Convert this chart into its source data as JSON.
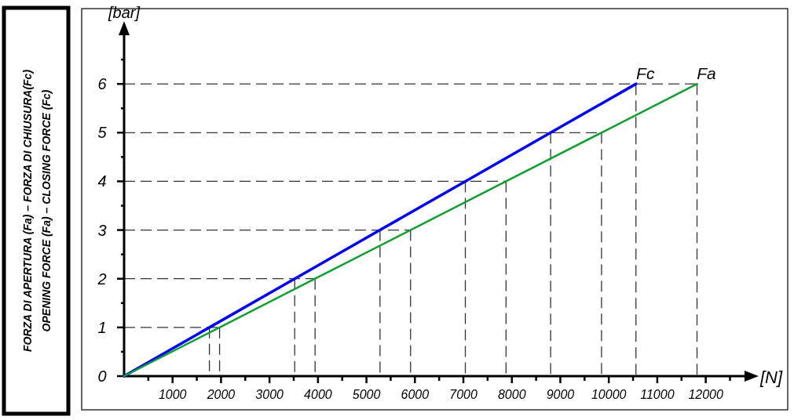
{
  "chart_data": {
    "type": "line",
    "title": "FORZA DI APERTURA (Fa) – FORZA DI CHIUSURA(Fc)",
    "subtitle": "OPENING FORCE (Fa) – CLOSING FORCE (Fc)",
    "xlabel": "[N]",
    "ylabel": "[bar]",
    "series": [
      {
        "name": "Fc",
        "color": "#0000ff",
        "x": [
          0,
          1760,
          3520,
          5280,
          7040,
          8800,
          10560
        ],
        "values": [
          0,
          1,
          2,
          3,
          4,
          5,
          6
        ]
      },
      {
        "name": "Fa",
        "color": "#10a030",
        "x": [
          0,
          1970,
          3940,
          5910,
          7880,
          9850,
          11820
        ],
        "values": [
          0,
          1,
          2,
          3,
          4,
          5,
          6
        ]
      }
    ],
    "xlim": [
      0,
      12800
    ],
    "ylim": [
      0,
      7
    ],
    "xticks": [
      {
        "value": 500,
        "label": null
      },
      1000,
      {
        "value": 1500,
        "label": null
      },
      2000,
      {
        "value": 2500,
        "label": null
      },
      3000,
      {
        "value": 3500,
        "label": null
      },
      4000,
      {
        "value": 4500,
        "label": null
      },
      5000,
      {
        "value": 5500,
        "label": null
      },
      6000,
      {
        "value": 6500,
        "label": null
      },
      7000,
      {
        "value": 7500,
        "label": null
      },
      8000,
      {
        "value": 8500,
        "label": null
      },
      9000,
      {
        "value": 9500,
        "label": null
      },
      10000,
      {
        "value": 10500,
        "label": null
      },
      11000,
      {
        "value": 11500,
        "label": null
      },
      12000,
      {
        "value": 12500,
        "label": null
      }
    ],
    "yticks": [
      0,
      {
        "value": 0.5,
        "label": null
      },
      1,
      {
        "value": 1.5,
        "label": null
      },
      2,
      {
        "value": 2.5,
        "label": null
      },
      3,
      {
        "value": 3.5,
        "label": null
      },
      4,
      {
        "value": 4.5,
        "label": null
      },
      5,
      {
        "value": 5.5,
        "label": null
      },
      6,
      {
        "value": 6.5,
        "label": null
      }
    ],
    "ref_lines": [
      {
        "axis": "y",
        "value": 1,
        "line_style": "dashed"
      },
      {
        "axis": "y",
        "value": 2,
        "line_style": "dashed"
      },
      {
        "axis": "y",
        "value": 3,
        "line_style": "dashed"
      },
      {
        "axis": "y",
        "value": 4,
        "line_style": "dashed"
      },
      {
        "axis": "y",
        "value": 5,
        "line_style": "dashed"
      },
      {
        "axis": "y",
        "value": 6,
        "line_style": "dashed"
      },
      {
        "axis": "x",
        "value": 1760,
        "line_style": "dashed"
      },
      {
        "axis": "x",
        "value": 3520,
        "line_style": "dashed"
      },
      {
        "axis": "x",
        "value": 5280,
        "line_style": "dashed"
      },
      {
        "axis": "x",
        "value": 7040,
        "line_style": "dashed"
      },
      {
        "axis": "x",
        "value": 8800,
        "line_style": "dashed"
      },
      {
        "axis": "x",
        "value": 10560,
        "line_style": "dashed"
      },
      {
        "axis": "x",
        "value": 1970,
        "line_style": "dashed"
      },
      {
        "axis": "x",
        "value": 3940,
        "line_style": "dashed"
      },
      {
        "axis": "x",
        "value": 5910,
        "line_style": "dashed"
      },
      {
        "axis": "x",
        "value": 7880,
        "line_style": "dashed"
      },
      {
        "axis": "x",
        "value": 9850,
        "line_style": "dashed"
      },
      {
        "axis": "x",
        "value": 11820,
        "line_style": "dashed"
      }
    ],
    "grid": false,
    "marker": "none",
    "line_style": "solid"
  }
}
